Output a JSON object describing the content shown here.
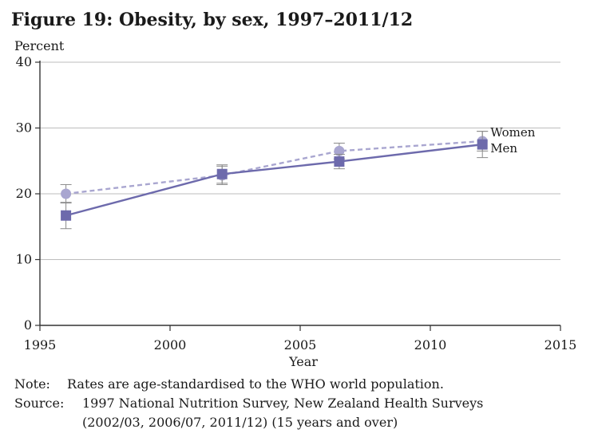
{
  "figure": {
    "title": "Figure 19: Obesity, by sex, 1997–2011/12"
  },
  "chart_data": {
    "type": "line",
    "title": "Figure 19: Obesity, by sex, 1997–2011/12",
    "xlabel": "Year",
    "ylabel": "Percent",
    "xlim": [
      1995,
      2015
    ],
    "ylim": [
      0,
      40
    ],
    "x_ticks": [
      1995,
      2000,
      2005,
      2010,
      2015
    ],
    "y_ticks": [
      0,
      10,
      20,
      30,
      40
    ],
    "grid": "horizontal",
    "legend": "direct labels at right end of lines",
    "series": [
      {
        "name": "Women",
        "style": "dashed",
        "marker": "circle",
        "color": "#a9a6d0",
        "x": [
          1996,
          2002,
          2006.5,
          2012
        ],
        "y": [
          20,
          22.8,
          26.5,
          28
        ],
        "ci_low": [
          18.6,
          21.4,
          25.3,
          26.5
        ],
        "ci_high": [
          21.4,
          24.2,
          27.7,
          29.5
        ]
      },
      {
        "name": "Men",
        "style": "solid",
        "marker": "square",
        "color": "#6d6aac",
        "x": [
          1996,
          2002,
          2006.5,
          2012
        ],
        "y": [
          16.7,
          23,
          24.9,
          27.5
        ],
        "ci_low": [
          14.7,
          21.6,
          23.8,
          25.5
        ],
        "ci_high": [
          18.7,
          24.4,
          26.0,
          29.5
        ]
      }
    ]
  },
  "notes": {
    "note_key": "Note:",
    "note_text": "Rates are age-standardised to the WHO world population.",
    "source_key": "Source:",
    "source_text": "1997 National Nutrition Survey, New Zealand Health Surveys (2002/03, 2006/07, 2011/12) (15 years and over)"
  }
}
